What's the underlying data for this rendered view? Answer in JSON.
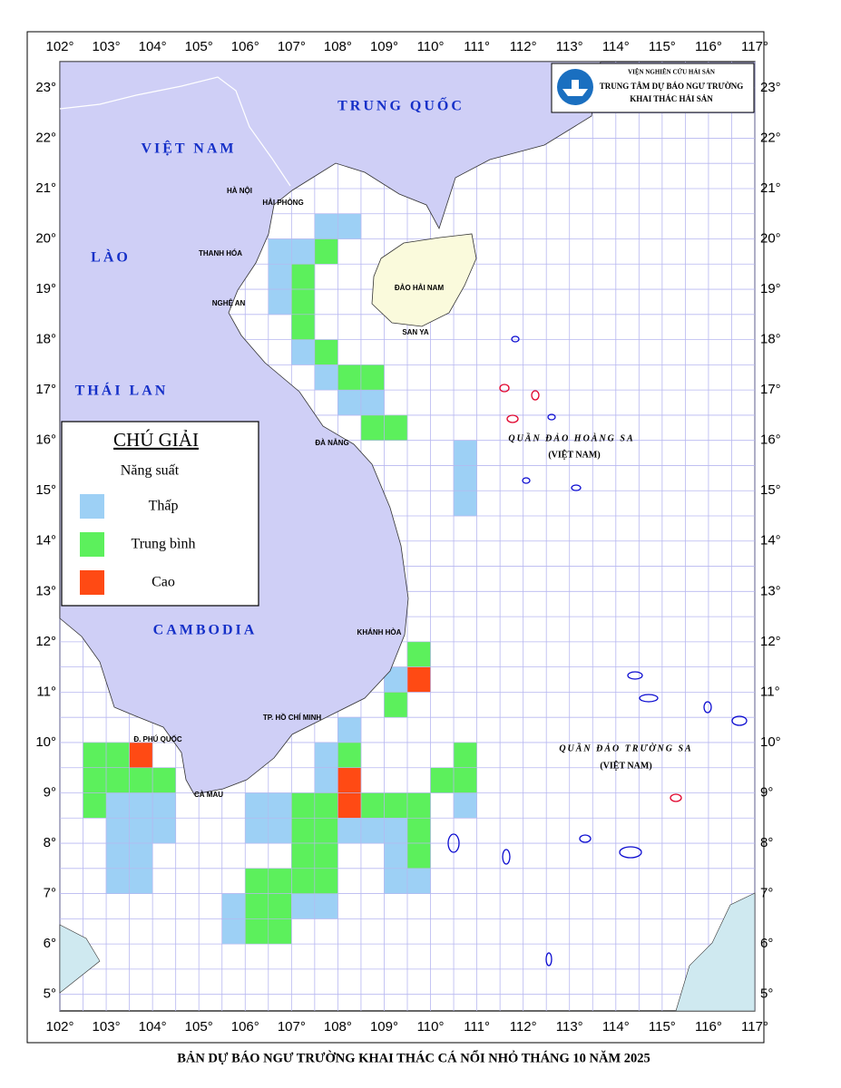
{
  "logo": {
    "institute": "VIỆN NGHIÊN CỨU HẢI SẢN",
    "center_line1": "TRUNG TÂM DỰ BÁO NGƯ TRƯỜNG",
    "center_line2": "KHAI THÁC HẢI SẢN"
  },
  "title": "BẢN DỰ BÁO NGƯ TRƯỜNG KHAI THÁC CÁ NỔI NHỎ THÁNG 10 NĂM 2025",
  "axes": {
    "lon_range": [
      102,
      117
    ],
    "lat_range": [
      4.67,
      23.52
    ],
    "lon_ticks": [
      {
        "value": 102,
        "label": "102°"
      },
      {
        "value": 103,
        "label": "103°"
      },
      {
        "value": 104,
        "label": "104°"
      },
      {
        "value": 105,
        "label": "105°"
      },
      {
        "value": 106,
        "label": "106°"
      },
      {
        "value": 107,
        "label": "107°"
      },
      {
        "value": 108,
        "label": "108°"
      },
      {
        "value": 109,
        "label": "109°"
      },
      {
        "value": 110,
        "label": "110°"
      },
      {
        "value": 111,
        "label": "111°"
      },
      {
        "value": 112,
        "label": "112°"
      },
      {
        "value": 113,
        "label": "113°"
      },
      {
        "value": 114,
        "label": "114°"
      },
      {
        "value": 115,
        "label": "115°"
      },
      {
        "value": 116,
        "label": "116°"
      },
      {
        "value": 117,
        "label": "117°"
      }
    ],
    "lat_ticks": [
      {
        "value": 5,
        "label": "5°"
      },
      {
        "value": 6,
        "label": "6°"
      },
      {
        "value": 7,
        "label": "7°"
      },
      {
        "value": 8,
        "label": "8°"
      },
      {
        "value": 9,
        "label": "9°"
      },
      {
        "value": 10,
        "label": "10°"
      },
      {
        "value": 11,
        "label": "11°"
      },
      {
        "value": 12,
        "label": "12°"
      },
      {
        "value": 13,
        "label": "13°"
      },
      {
        "value": 14,
        "label": "14°"
      },
      {
        "value": 15,
        "label": "15°"
      },
      {
        "value": 16,
        "label": "16°"
      },
      {
        "value": 17,
        "label": "17°"
      },
      {
        "value": 18,
        "label": "18°"
      },
      {
        "value": 19,
        "label": "19°"
      },
      {
        "value": 20,
        "label": "20°"
      },
      {
        "value": 21,
        "label": "21°"
      },
      {
        "value": 22,
        "label": "22°"
      },
      {
        "value": 23,
        "label": "23°"
      }
    ]
  },
  "map_labels": {
    "countries": [
      "TRUNG QUỐC",
      "VIỆT NAM",
      "LÀO",
      "THÁI LAN",
      "CAMBODIA"
    ],
    "places": [
      "HÀ NỘI",
      "HẢI PHÒNG",
      "THANH HÓA",
      "NGHỆ AN",
      "ĐÀ NẴNG",
      "KHÁNH HÒA",
      "TP. HỒ CHÍ MINH",
      "CÀ MAU",
      "Đ. PHÚ QUỐC",
      "SAN YA"
    ],
    "islands": [
      "ĐẢO HẢI NAM",
      "QUẦN ĐẢO HOÀNG SA",
      "(VIỆT NAM)",
      "QUẦN ĐẢO TRƯỜNG SA",
      "(VIỆT NAM)"
    ]
  },
  "legend": {
    "title": "CHÚ GIẢI",
    "subtitle": "Năng suất",
    "items": [
      {
        "label": "Thấp",
        "color": "#9dd0f5",
        "cells": [
          [
            106.5,
            19.5
          ],
          [
            106.5,
            19.0
          ],
          [
            106.5,
            18.5
          ],
          [
            107.0,
            19.5
          ],
          [
            107.5,
            20.0
          ],
          [
            108.0,
            20.0
          ],
          [
            107.0,
            17.5
          ],
          [
            107.5,
            17.0
          ],
          [
            108.0,
            16.5
          ],
          [
            108.5,
            16.5
          ],
          [
            110.5,
            15.5
          ],
          [
            110.5,
            15.0
          ],
          [
            110.5,
            14.5
          ],
          [
            109.0,
            11.0
          ],
          [
            108.0,
            10.0
          ],
          [
            107.5,
            9.5
          ],
          [
            107.5,
            9.0
          ],
          [
            110.5,
            8.5
          ],
          [
            106.0,
            8.5
          ],
          [
            106.5,
            8.5
          ],
          [
            106.0,
            8.0
          ],
          [
            106.5,
            8.0
          ],
          [
            107.0,
            6.5
          ],
          [
            107.5,
            6.5
          ],
          [
            108.0,
            8.0
          ],
          [
            108.5,
            8.0
          ],
          [
            109.0,
            8.0
          ],
          [
            109.0,
            7.5
          ],
          [
            109.0,
            7.0
          ],
          [
            109.5,
            7.0
          ],
          [
            105.5,
            6.5
          ],
          [
            105.5,
            6.0
          ],
          [
            103.0,
            8.5
          ],
          [
            103.5,
            8.5
          ],
          [
            104.0,
            8.5
          ],
          [
            103.0,
            8.0
          ],
          [
            103.5,
            8.0
          ],
          [
            104.0,
            8.0
          ],
          [
            103.0,
            7.5
          ],
          [
            103.5,
            7.5
          ],
          [
            103.0,
            7.0
          ],
          [
            103.5,
            7.0
          ]
        ]
      },
      {
        "label": "Trung bình",
        "color": "#5cf05c",
        "cells": [
          [
            107.5,
            19.5
          ],
          [
            107.0,
            19.0
          ],
          [
            107.0,
            18.5
          ],
          [
            107.0,
            18.0
          ],
          [
            107.5,
            17.5
          ],
          [
            108.0,
            17.0
          ],
          [
            108.5,
            17.0
          ],
          [
            108.5,
            16.0
          ],
          [
            109.0,
            16.0
          ],
          [
            109.5,
            11.5
          ],
          [
            109.0,
            10.5
          ],
          [
            108.0,
            9.5
          ],
          [
            110.5,
            9.5
          ],
          [
            110.0,
            9.0
          ],
          [
            110.5,
            9.0
          ],
          [
            107.0,
            8.5
          ],
          [
            107.5,
            8.5
          ],
          [
            107.0,
            8.0
          ],
          [
            107.5,
            8.0
          ],
          [
            107.0,
            7.5
          ],
          [
            107.5,
            7.5
          ],
          [
            107.0,
            7.0
          ],
          [
            107.5,
            7.0
          ],
          [
            108.5,
            8.5
          ],
          [
            109.0,
            8.5
          ],
          [
            109.5,
            8.5
          ],
          [
            109.5,
            8.0
          ],
          [
            109.5,
            7.5
          ],
          [
            106.0,
            7.0
          ],
          [
            106.5,
            7.0
          ],
          [
            106.0,
            6.5
          ],
          [
            106.5,
            6.5
          ],
          [
            106.0,
            6.0
          ],
          [
            106.5,
            6.0
          ],
          [
            102.5,
            9.5
          ],
          [
            103.0,
            9.5
          ],
          [
            102.5,
            9.0
          ],
          [
            103.0,
            9.0
          ],
          [
            102.5,
            8.5
          ],
          [
            103.5,
            9.0
          ],
          [
            104.0,
            9.0
          ]
        ]
      },
      {
        "label": "Cao",
        "color": "#ff4a14",
        "cells": [
          [
            103.5,
            9.5
          ],
          [
            109.5,
            11.0
          ],
          [
            108.0,
            9.0
          ],
          [
            108.0,
            8.5
          ]
        ]
      }
    ]
  }
}
